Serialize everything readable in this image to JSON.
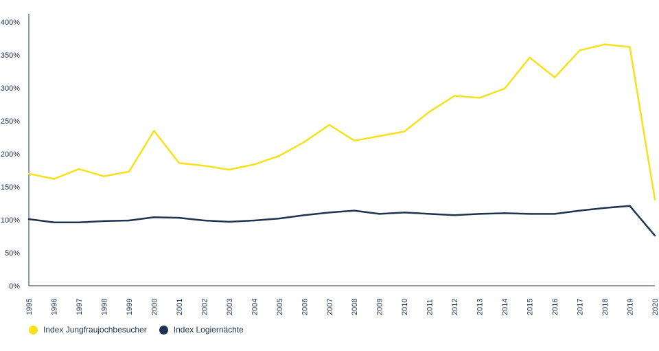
{
  "chart_data": {
    "type": "line",
    "title": "",
    "xlabel": "",
    "ylabel": "",
    "categories": [
      "1995",
      "1996",
      "1997",
      "1998",
      "1999",
      "2000",
      "2001",
      "2002",
      "2003",
      "2004",
      "2005",
      "2006",
      "2007",
      "2008",
      "2009",
      "2010",
      "2011",
      "2012",
      "2013",
      "2014",
      "2015",
      "2016",
      "2017",
      "2018",
      "2019",
      "2020"
    ],
    "ylim": [
      0,
      400
    ],
    "yticks": [
      0,
      50,
      100,
      150,
      200,
      250,
      300,
      350,
      400
    ],
    "ytick_labels": [
      "0%",
      "50%",
      "100%",
      "150%",
      "200%",
      "250%",
      "300%",
      "350%",
      "400%"
    ],
    "grid": false,
    "legend_position": "bottom-left",
    "series": [
      {
        "name": "Index Jungfraujochbesucher",
        "color": "#F7E11B",
        "values": [
          170,
          162,
          177,
          166,
          173,
          235,
          186,
          182,
          176,
          184,
          197,
          218,
          244,
          220,
          227,
          234,
          264,
          288,
          285,
          299,
          346,
          316,
          357,
          366,
          362,
          131
        ]
      },
      {
        "name": "Index Logiernächte",
        "color": "#1E3350",
        "values": [
          101,
          96,
          96,
          98,
          99,
          104,
          103,
          99,
          97,
          99,
          102,
          107,
          111,
          114,
          109,
          111,
          109,
          107,
          109,
          110,
          109,
          109,
          114,
          118,
          121,
          76
        ]
      }
    ]
  }
}
